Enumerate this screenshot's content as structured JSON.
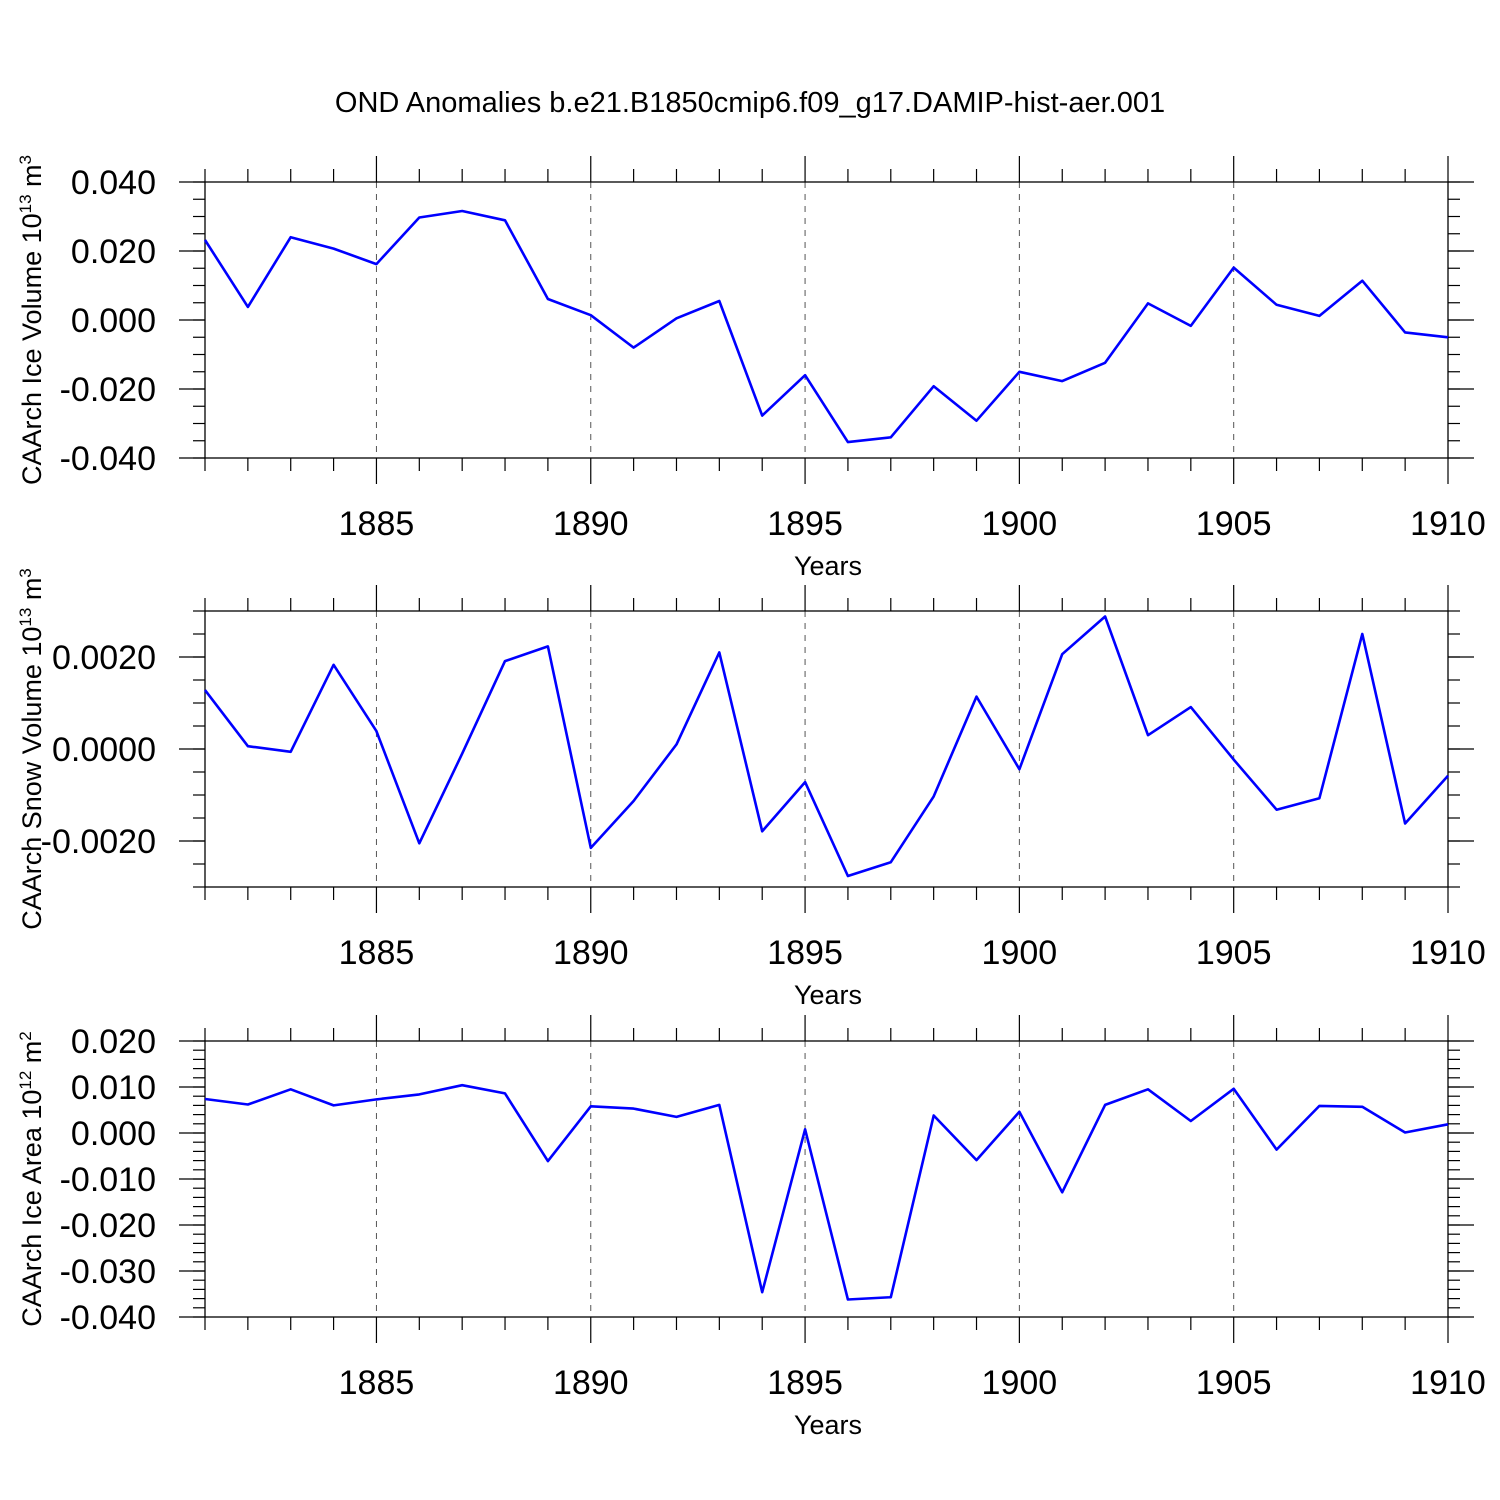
{
  "figure_title": "OND Anomalies b.e21.B1850cmip6.f09_g17.DAMIP-hist-aer.001",
  "colors": {
    "series": "#0000ff",
    "axes": "#000000",
    "grid": "#555555"
  },
  "chart_data": [
    {
      "type": "line",
      "ylabel_main": "CAArch Ice Volume 10",
      "ylabel_exp": "13",
      "ylabel_unit": " m",
      "ylabel_unit_exp": "3",
      "xlabel": "Years",
      "xlim": [
        1881,
        1910
      ],
      "ylim": [
        -0.04,
        0.04
      ],
      "x_ticks": [
        1885,
        1890,
        1895,
        1900,
        1905,
        1910
      ],
      "x_tick_labels": [
        "1885",
        "1890",
        "1895",
        "1900",
        "1905",
        "1910"
      ],
      "y_ticks": [
        -0.04,
        -0.02,
        0.0,
        0.02,
        0.04
      ],
      "y_tick_labels": [
        "-0.040",
        "-0.020",
        "0.000",
        "0.020",
        "0.040"
      ],
      "y_minor_step": 0.005,
      "grid": "x-dashed",
      "x": [
        1881,
        1882,
        1883,
        1884,
        1885,
        1886,
        1887,
        1888,
        1889,
        1890,
        1891,
        1892,
        1893,
        1894,
        1895,
        1896,
        1897,
        1898,
        1899,
        1900,
        1901,
        1902,
        1903,
        1904,
        1905,
        1906,
        1907,
        1908,
        1909,
        1910
      ],
      "values": [
        0.0232,
        0.0038,
        0.024,
        0.0207,
        0.0162,
        0.0297,
        0.0316,
        0.0289,
        0.0061,
        0.0014,
        -0.008,
        0.0005,
        0.0055,
        -0.0277,
        -0.016,
        -0.0354,
        -0.034,
        -0.0192,
        -0.0292,
        -0.015,
        -0.0177,
        -0.0124,
        0.0048,
        -0.0017,
        0.0152,
        0.0044,
        0.0012,
        0.0114,
        -0.0036,
        -0.005
      ]
    },
    {
      "type": "line",
      "ylabel_main": "CAArch Snow Volume 10",
      "ylabel_exp": "13",
      "ylabel_unit": " m",
      "ylabel_unit_exp": "3",
      "xlabel": "Years",
      "xlim": [
        1881,
        1910
      ],
      "ylim": [
        -0.003,
        0.003
      ],
      "x_ticks": [
        1885,
        1890,
        1895,
        1900,
        1905,
        1910
      ],
      "x_tick_labels": [
        "1885",
        "1890",
        "1895",
        "1900",
        "1905",
        "1910"
      ],
      "y_ticks": [
        -0.002,
        0.0,
        0.002
      ],
      "y_tick_labels": [
        "-0.0020",
        "0.0000",
        "0.0020"
      ],
      "y_minor_step": 0.0005,
      "grid": "x-dashed",
      "x": [
        1881,
        1882,
        1883,
        1884,
        1885,
        1886,
        1887,
        1888,
        1889,
        1890,
        1891,
        1892,
        1893,
        1894,
        1895,
        1896,
        1897,
        1898,
        1899,
        1900,
        1901,
        1902,
        1903,
        1904,
        1905,
        1906,
        1907,
        1908,
        1909,
        1910
      ],
      "values": [
        0.00128,
        6e-05,
        -6e-05,
        0.00183,
        0.00039,
        -0.00205,
        -0.0001,
        0.00191,
        0.00223,
        -0.00215,
        -0.00113,
        0.0001,
        0.0021,
        -0.00179,
        -0.00072,
        -0.00276,
        -0.00246,
        -0.00103,
        0.00114,
        -0.00044,
        0.00206,
        0.00288,
        0.0003,
        0.00091,
        -0.00023,
        -0.00132,
        -0.00107,
        0.0025,
        -0.00162,
        -0.00058
      ]
    },
    {
      "type": "line",
      "ylabel_main": "CAArch Ice Area 10",
      "ylabel_exp": "12",
      "ylabel_unit": " m",
      "ylabel_unit_exp": "2",
      "xlabel": "Years",
      "xlim": [
        1881,
        1910
      ],
      "ylim": [
        -0.04,
        0.02
      ],
      "x_ticks": [
        1885,
        1890,
        1895,
        1900,
        1905,
        1910
      ],
      "x_tick_labels": [
        "1885",
        "1890",
        "1895",
        "1900",
        "1905",
        "1910"
      ],
      "y_ticks": [
        -0.04,
        -0.03,
        -0.02,
        -0.01,
        0.0,
        0.01,
        0.02
      ],
      "y_tick_labels": [
        "-0.040",
        "-0.030",
        "-0.020",
        "-0.010",
        "0.000",
        "0.010",
        "0.020"
      ],
      "y_minor_step": 0.002,
      "grid": "x-dashed",
      "x": [
        1881,
        1882,
        1883,
        1884,
        1885,
        1886,
        1887,
        1888,
        1889,
        1890,
        1891,
        1892,
        1893,
        1894,
        1895,
        1896,
        1897,
        1898,
        1899,
        1900,
        1901,
        1902,
        1903,
        1904,
        1905,
        1906,
        1907,
        1908,
        1909,
        1910
      ],
      "values": [
        0.0074,
        0.0062,
        0.0095,
        0.006,
        0.0073,
        0.0084,
        0.0104,
        0.0086,
        -0.0061,
        0.0058,
        0.0053,
        0.0035,
        0.0061,
        -0.0346,
        0.0008,
        -0.0362,
        -0.0357,
        0.0038,
        -0.0059,
        0.0046,
        -0.0129,
        0.0061,
        0.0095,
        0.0026,
        0.0096,
        -0.0036,
        0.0059,
        0.0057,
        0.0001,
        0.0019
      ]
    }
  ]
}
